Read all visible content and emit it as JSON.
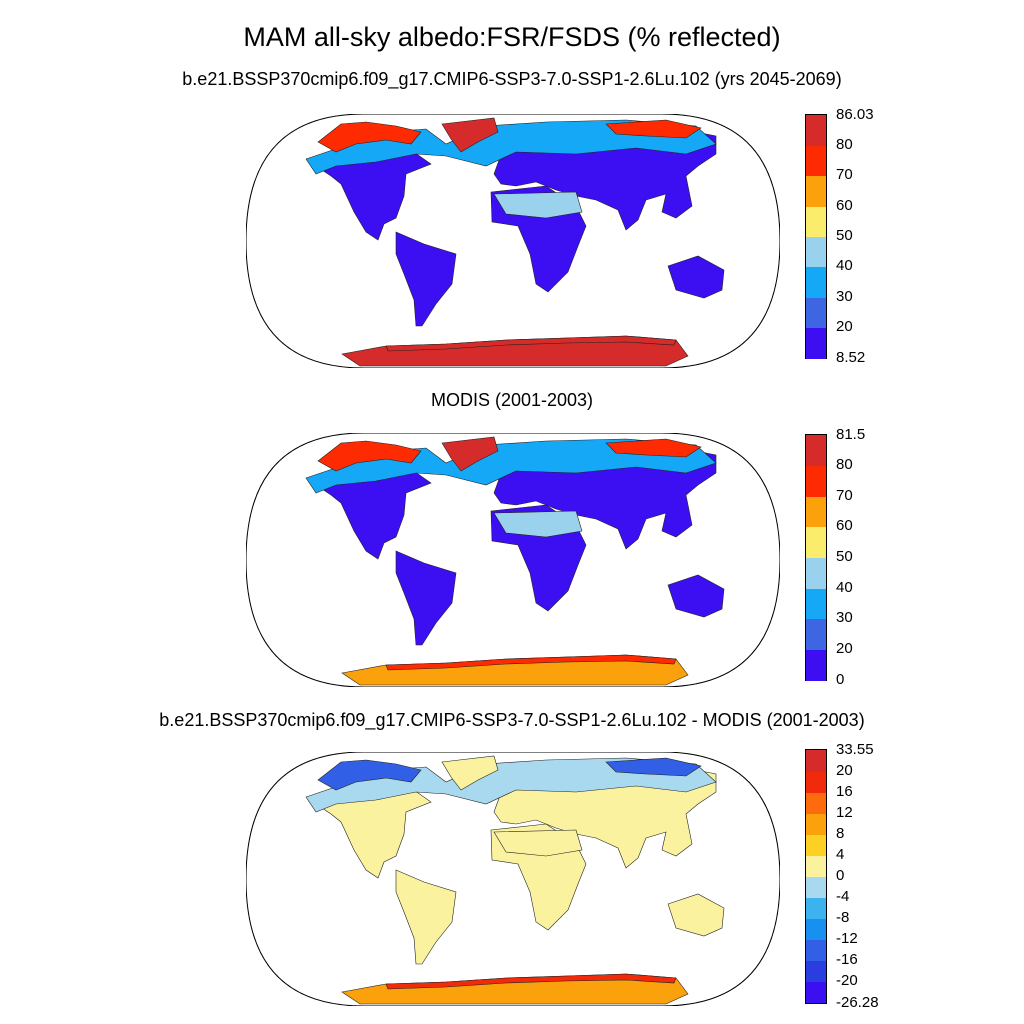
{
  "title": "MAM all-sky albedo:FSR/FSDS (% reflected)",
  "panels": [
    {
      "name": "model",
      "title": "b.e21.BSSP370cmip6.f09_g17.CMIP6-SSP3-7.0-SSP1-2.6Lu.102 (yrs 2045-2069)",
      "colorbar": {
        "colors": [
          "#3b0ff2",
          "#3f66e2",
          "#14a8f7",
          "#9ad2ee",
          "#fbed6c",
          "#fba10c",
          "#fd2a02",
          "#d62b2b"
        ],
        "labels": [
          "8.52",
          "20",
          "30",
          "40",
          "50",
          "60",
          "70",
          "80",
          "86.03"
        ]
      },
      "fills": {
        "land": "#3b0ff2",
        "north_band": "#14a8f7",
        "sahara": "#9ad2ee",
        "arctic": "#fd2a02",
        "greenland": "#d62b2b",
        "antarctica": "#d62b2b",
        "antarctica_edge": "#d62b2b"
      }
    },
    {
      "name": "modis",
      "title": "MODIS (2001-2003)",
      "colorbar": {
        "colors": [
          "#3b0ff2",
          "#3f66e2",
          "#14a8f7",
          "#9ad2ee",
          "#fbed6c",
          "#fba10c",
          "#fd2a02",
          "#d62b2b"
        ],
        "labels": [
          "0",
          "20",
          "30",
          "40",
          "50",
          "60",
          "70",
          "80",
          "81.5"
        ]
      },
      "fills": {
        "land": "#3b0ff2",
        "north_band": "#14a8f7",
        "sahara": "#9ad2ee",
        "arctic": "#fd2a02",
        "greenland": "#d62b2b",
        "antarctica": "#fba10c",
        "antarctica_edge": "#fd2a02"
      }
    },
    {
      "name": "difference",
      "title": "b.e21.BSSP370cmip6.f09_g17.CMIP6-SSP3-7.0-SSP1-2.6Lu.102 - MODIS (2001-2003)",
      "colorbar": {
        "colors": [
          "#3b0ff2",
          "#2a3de0",
          "#3160e6",
          "#1790f0",
          "#3cb2ee",
          "#a8d9ee",
          "#fbf2a0",
          "#fdd124",
          "#fba10c",
          "#fd6b0c",
          "#f02a0a",
          "#d62b2b"
        ],
        "labels": [
          "-26.28",
          "-20",
          "-16",
          "-12",
          "-8",
          "-4",
          "0",
          "4",
          "8",
          "12",
          "16",
          "20",
          "33.55"
        ]
      },
      "fills": {
        "land": "#fbf2a0",
        "north_band": "#a8d9ee",
        "sahara": "#fbf2a0",
        "arctic": "#3160e6",
        "greenland": "#fbf2a0",
        "antarctica": "#fba10c",
        "antarctica_edge": "#f02a0a"
      }
    }
  ]
}
